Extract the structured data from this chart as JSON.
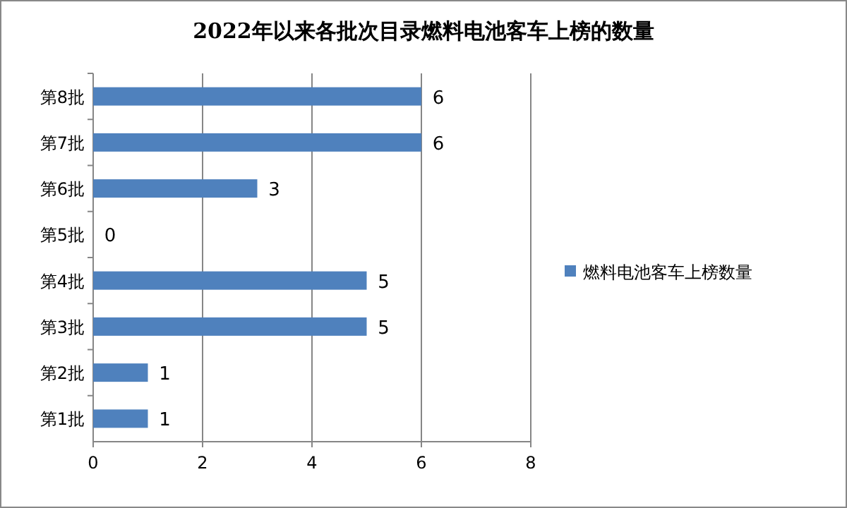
{
  "chart_data": {
    "type": "bar",
    "orientation": "horizontal",
    "title": "2022年以来各批次目录燃料电池客车上榜的数量",
    "categories": [
      "第8批",
      "第7批",
      "第6批",
      "第5批",
      "第4批",
      "第3批",
      "第2批",
      "第1批"
    ],
    "series": [
      {
        "name": "燃料电池客车上榜数量",
        "color": "#4f81bd",
        "values": [
          6,
          6,
          3,
          0,
          5,
          5,
          1,
          1
        ]
      }
    ],
    "xlim": [
      0,
      8
    ],
    "xticks": [
      0,
      2,
      4,
      6,
      8
    ],
    "grid": "x",
    "legend": "right",
    "data_labels": true
  }
}
